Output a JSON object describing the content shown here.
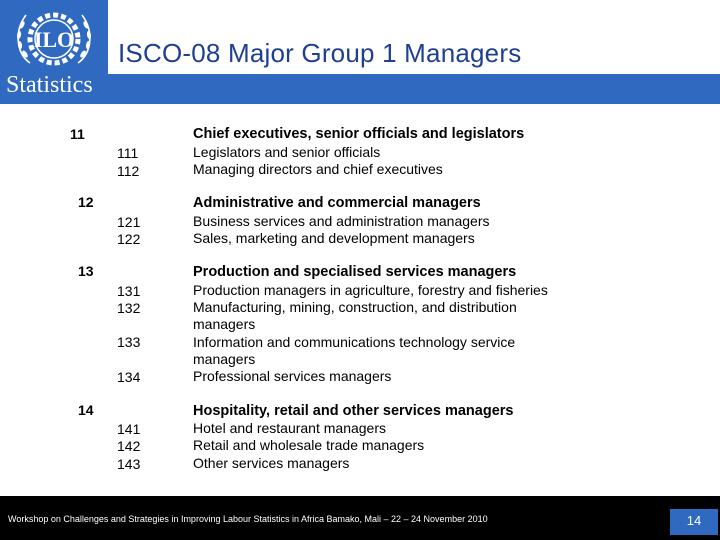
{
  "header": {
    "title": "ISCO-08 Major Group 1 Managers",
    "logo_label": "ILO",
    "brand_label": "Statistics",
    "accent_color": "#2f6ac0"
  },
  "groups": [
    {
      "code": "11",
      "title": "Chief executives, senior officials and legislators",
      "items": [
        {
          "code": "111",
          "label": "Legislators and senior officials"
        },
        {
          "code": "112",
          "label": "Managing directors and chief executives"
        }
      ]
    },
    {
      "code": "12",
      "title": "Administrative and commercial managers",
      "items": [
        {
          "code": "121",
          "label": "Business services and administration managers"
        },
        {
          "code": "122",
          "label": "Sales, marketing and development managers"
        }
      ]
    },
    {
      "code": "13",
      "title": "Production and specialised services managers",
      "items": [
        {
          "code": "131",
          "label": "Production managers in agriculture, forestry and fisheries"
        },
        {
          "code": "132",
          "label": "Manufacturing,  mining, construction, and distribution",
          "label_cont": "managers"
        },
        {
          "code": "133",
          "label": "Information and communications technology service",
          "label_cont": "managers"
        },
        {
          "code": "134",
          "label": "Professional services managers"
        }
      ]
    },
    {
      "code": "14",
      "title": "Hospitality, retail and other services managers",
      "items": [
        {
          "code": "141",
          "label": "Hotel and restaurant managers"
        },
        {
          "code": "142",
          "label": "Retail and wholesale trade managers"
        },
        {
          "code": "143",
          "label": "Other services managers"
        }
      ]
    }
  ],
  "footer": {
    "text": "Workshop on Challenges and Strategies in Improving Labour Statistics in Africa Bamako, Mali – 22 – 24 November 2010",
    "page_number": "14"
  }
}
